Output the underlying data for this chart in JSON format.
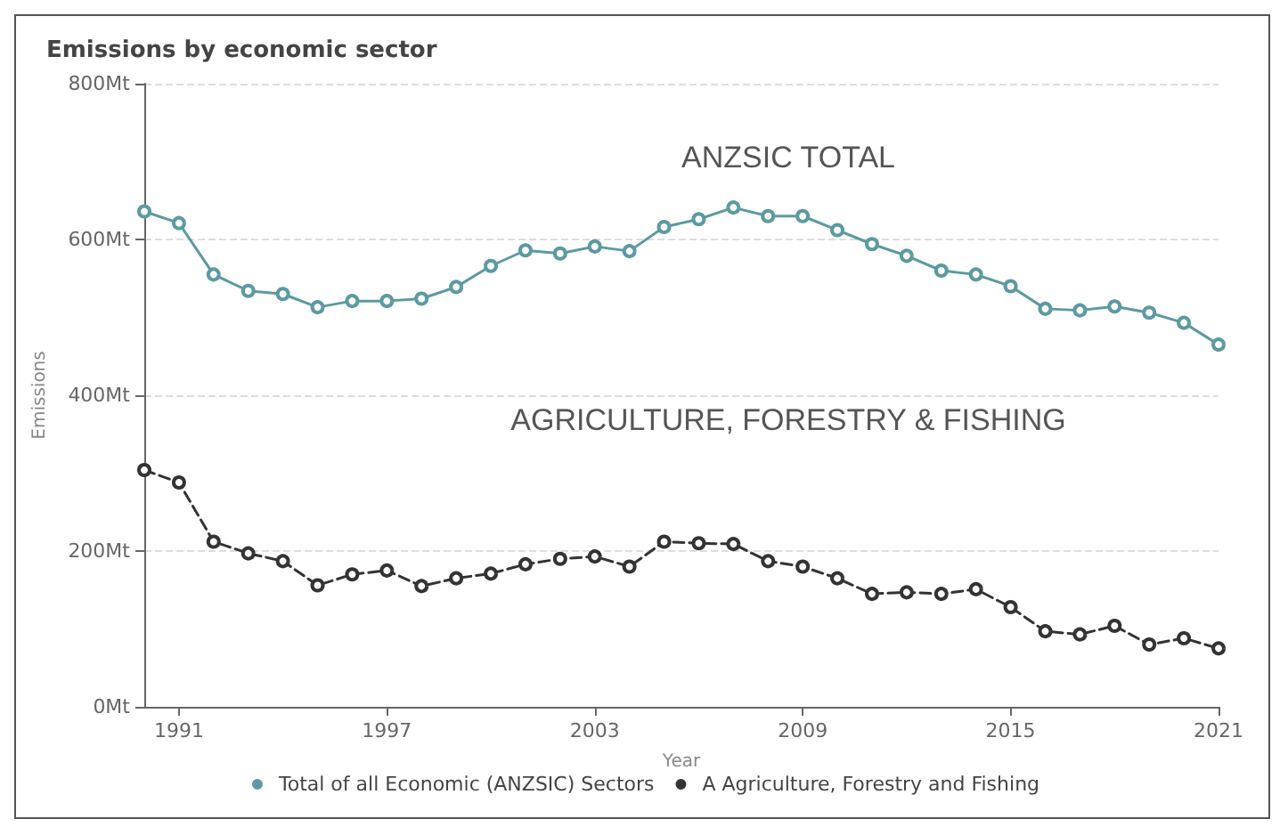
{
  "chart_data": {
    "type": "line",
    "title": "Emissions by economic sector",
    "xlabel": "Year",
    "ylabel": "Emissions",
    "x": [
      1990,
      1991,
      1992,
      1993,
      1994,
      1995,
      1996,
      1997,
      1998,
      1999,
      2000,
      2001,
      2002,
      2003,
      2004,
      2005,
      2006,
      2007,
      2008,
      2009,
      2010,
      2011,
      2012,
      2013,
      2014,
      2015,
      2016,
      2017,
      2018,
      2019,
      2020,
      2021
    ],
    "series": [
      {
        "name": "Total of all Economic (ANZSIC) Sectors",
        "color": "#5b9aa0",
        "line_style": "solid",
        "values": [
          636,
          621,
          555,
          534,
          530,
          513,
          521,
          521,
          524,
          539,
          566,
          586,
          582,
          591,
          585,
          616,
          626,
          641,
          630,
          630,
          612,
          594,
          579,
          560,
          555,
          540,
          511,
          509,
          514,
          506,
          493,
          465
        ]
      },
      {
        "name": "A Agriculture, Forestry and Fishing",
        "color": "#333333",
        "line_style": "dashed",
        "values": [
          304,
          288,
          212,
          197,
          187,
          156,
          170,
          175,
          155,
          165,
          171,
          183,
          190,
          193,
          180,
          212,
          210,
          209,
          187,
          180,
          165,
          145,
          147,
          145,
          151,
          128,
          97,
          93,
          104,
          80,
          88,
          75
        ]
      }
    ],
    "annotations": [
      "ANZSIC TOTAL",
      "AGRICULTURE, FORESTRY & FISHING"
    ],
    "xlim": [
      1990,
      2021
    ],
    "xticks": [
      1991,
      1997,
      2003,
      2009,
      2015,
      2021
    ],
    "ylim": [
      0,
      800
    ],
    "yticks": [
      {
        "value": 0,
        "label": "0Mt"
      },
      {
        "value": 200,
        "label": "200Mt"
      },
      {
        "value": 400,
        "label": "400Mt"
      },
      {
        "value": 600,
        "label": "600Mt"
      },
      {
        "value": 800,
        "label": "800Mt"
      }
    ],
    "grid": "y",
    "legend": "bottom",
    "marker": "circle"
  }
}
